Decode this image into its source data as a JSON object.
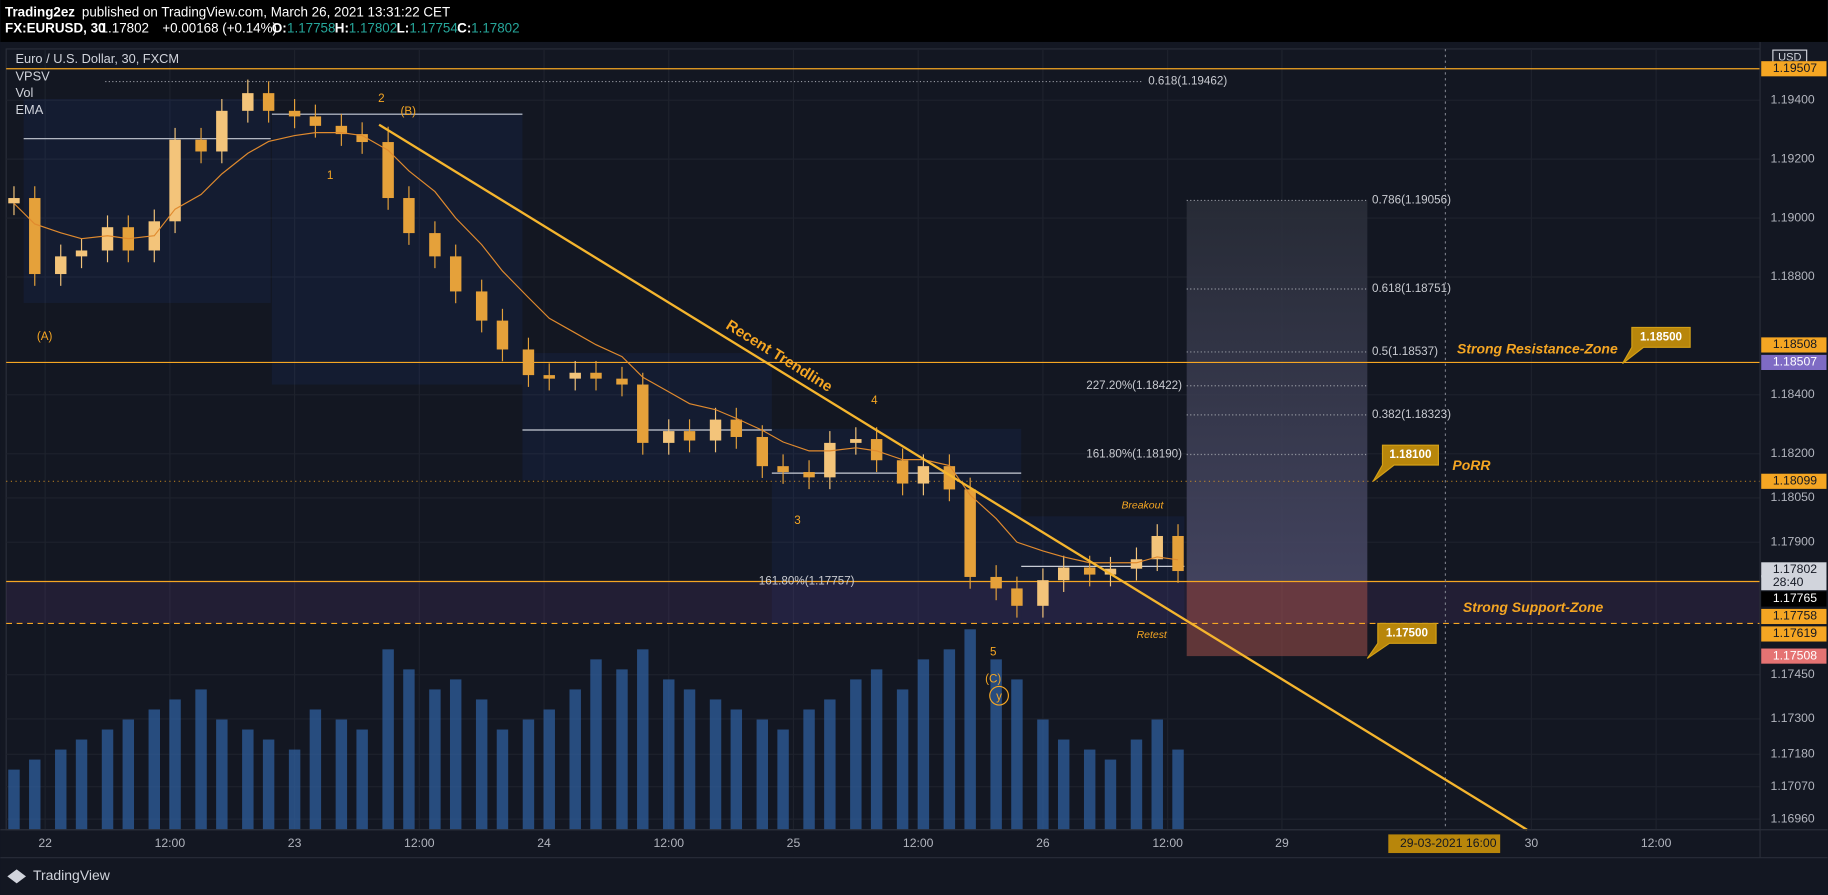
{
  "header": {
    "author": "Trading2ez",
    "published": "published on TradingView.com, March 26, 2021 13:31:22 CET",
    "symbol": "FX:EURUSD, 30",
    "last": "1.17802",
    "change": "+0.00168 (+0.14%)",
    "ohlc": [
      "O:",
      "1.17758",
      "H:",
      "1.17802",
      "L:",
      "1.17754",
      "C:",
      "1.17802"
    ]
  },
  "legend": {
    "title": "Euro / U.S. Dollar, 30, FXCM",
    "indicators": [
      "VPSV",
      "Vol",
      "EMA"
    ],
    "currency": "USD"
  },
  "chart_data": {
    "type": "candlestick",
    "up_color": "#f3c47a",
    "down_color": "#e5a13a",
    "ema_color": "#e08a2e",
    "volume_color": "#2f5f9e",
    "x": [
      -6,
      -2,
      3,
      7,
      12,
      16,
      21,
      25,
      30,
      34,
      39,
      43,
      48,
      52,
      57,
      61,
      66,
      70,
      75,
      79,
      84,
      88,
      93,
      97,
      102,
      106,
      111,
      115,
      120,
      124,
      129,
      133,
      138,
      142,
      147,
      151,
      156,
      160,
      165,
      169,
      174,
      178,
      183,
      187,
      192,
      196,
      201,
      205,
      210,
      214,
      218
    ],
    "open": [
      1.1905,
      1.19068,
      1.1881,
      1.1887,
      1.1889,
      1.18969,
      1.1889,
      1.18989,
      1.19266,
      1.19226,
      1.19364,
      1.19424,
      1.19364,
      1.19345,
      1.19313,
      1.19285,
      1.19258,
      1.19068,
      1.18949,
      1.1887,
      1.18751,
      1.18652,
      1.18554,
      1.18467,
      1.18455,
      1.18475,
      1.18455,
      1.18435,
      1.18237,
      1.18277,
      1.18245,
      1.18316,
      1.18257,
      1.18158,
      1.18138,
      1.1812,
      1.18237,
      1.1825,
      1.18178,
      1.18099,
      1.18158,
      1.18079,
      1.17782,
      1.17743,
      1.17684,
      1.17771,
      1.17814,
      1.1779,
      1.1781,
      1.17842,
      1.17921
    ],
    "high": [
      1.19108,
      1.19108,
      1.1891,
      1.1893,
      1.19009,
      1.19009,
      1.19029,
      1.19306,
      1.19306,
      1.19404,
      1.1947,
      1.19464,
      1.19404,
      1.19385,
      1.19353,
      1.19325,
      1.1931,
      1.19108,
      1.18989,
      1.1891,
      1.18791,
      1.18692,
      1.18594,
      1.18507,
      1.18515,
      1.18515,
      1.18495,
      1.18475,
      1.18317,
      1.18317,
      1.18356,
      1.18356,
      1.18297,
      1.18198,
      1.18178,
      1.18277,
      1.1829,
      1.1829,
      1.18218,
      1.18198,
      1.18198,
      1.18119,
      1.17822,
      1.17783,
      1.17811,
      1.17854,
      1.17854,
      1.1785,
      1.17882,
      1.17961,
      1.17961
    ],
    "low": [
      1.1901,
      1.1877,
      1.1877,
      1.1883,
      1.1885,
      1.1885,
      1.1885,
      1.18949,
      1.19186,
      1.19186,
      1.19324,
      1.19324,
      1.19305,
      1.19273,
      1.19245,
      1.19218,
      1.19028,
      1.18909,
      1.1883,
      1.18711,
      1.18612,
      1.18514,
      1.18427,
      1.18415,
      1.18415,
      1.18415,
      1.18395,
      1.18197,
      1.18197,
      1.18205,
      1.18205,
      1.18217,
      1.18118,
      1.18098,
      1.1808,
      1.1808,
      1.18197,
      1.18138,
      1.18059,
      1.18059,
      1.18039,
      1.17742,
      1.17703,
      1.17644,
      1.17644,
      1.17731,
      1.1775,
      1.1775,
      1.1777,
      1.17802,
      1.17762
    ],
    "close": [
      1.19068,
      1.1881,
      1.1887,
      1.1889,
      1.18969,
      1.1889,
      1.18989,
      1.19266,
      1.19226,
      1.19364,
      1.19424,
      1.19364,
      1.19345,
      1.19313,
      1.19285,
      1.19258,
      1.19068,
      1.18949,
      1.1887,
      1.18751,
      1.18652,
      1.18554,
      1.18467,
      1.18455,
      1.18475,
      1.18455,
      1.18435,
      1.18237,
      1.18277,
      1.18245,
      1.18316,
      1.18257,
      1.18158,
      1.18138,
      1.1812,
      1.18237,
      1.1825,
      1.18178,
      1.18099,
      1.18158,
      1.18079,
      1.17782,
      1.17743,
      1.17684,
      1.17771,
      1.17814,
      1.1779,
      1.1781,
      1.17842,
      1.17921,
      1.17802
    ],
    "ema": [
      1.1905,
      1.1898,
      1.1895,
      1.1893,
      1.1894,
      1.1893,
      1.1894,
      1.1903,
      1.1908,
      1.1915,
      1.1922,
      1.1926,
      1.1928,
      1.1929,
      1.1929,
      1.1928,
      1.1923,
      1.1916,
      1.1909,
      1.19,
      1.1891,
      1.1882,
      1.1873,
      1.1866,
      1.1861,
      1.1857,
      1.1853,
      1.1846,
      1.1841,
      1.1837,
      1.1835,
      1.1832,
      1.1828,
      1.1824,
      1.1821,
      1.1821,
      1.1822,
      1.1821,
      1.1818,
      1.1818,
      1.1816,
      1.1806,
      1.1798,
      1.179,
      1.1787,
      1.1785,
      1.1783,
      1.1783,
      1.1783,
      1.1785,
      1.1784
    ],
    "volume": [
      30,
      35,
      40,
      45,
      50,
      55,
      60,
      65,
      70,
      55,
      50,
      45,
      40,
      60,
      55,
      50,
      90,
      80,
      70,
      75,
      65,
      50,
      55,
      60,
      70,
      85,
      80,
      90,
      75,
      70,
      65,
      60,
      55,
      50,
      60,
      65,
      75,
      80,
      70,
      85,
      90,
      100,
      85,
      75,
      55,
      45,
      40,
      35,
      45,
      55,
      40
    ],
    "volume_lim": [
      0,
      100
    ],
    "xlim": [
      -7.5,
      330
    ],
    "ylim": [
      1.16924,
      1.19574
    ],
    "xticks": [
      {
        "value": 0,
        "label": "22"
      },
      {
        "value": 24,
        "label": "12:00"
      },
      {
        "value": 48,
        "label": "23"
      },
      {
        "value": 72,
        "label": "12:00"
      },
      {
        "value": 96,
        "label": "24"
      },
      {
        "value": 120,
        "label": "12:00"
      },
      {
        "value": 144,
        "label": "25"
      },
      {
        "value": 168,
        "label": "12:00"
      },
      {
        "value": 192,
        "label": "26"
      },
      {
        "value": 216,
        "label": "12:00"
      },
      {
        "value": 238,
        "label": "29"
      },
      {
        "value": 286,
        "label": "30"
      },
      {
        "value": 310,
        "label": "12:00"
      }
    ],
    "crosshair_x": {
      "value": 270,
      "label": "29-03-2021 16:00"
    },
    "yticks": [
      {
        "value": 1.194,
        "label": "1.19400"
      },
      {
        "value": 1.192,
        "label": "1.19200"
      },
      {
        "value": 1.19,
        "label": "1.19000"
      },
      {
        "value": 1.188,
        "label": "1.18800"
      },
      {
        "value": 1.184,
        "label": "1.18400"
      },
      {
        "value": 1.182,
        "label": "1.18200"
      },
      {
        "value": 1.1805,
        "label": "1.18050"
      },
      {
        "value": 1.179,
        "label": "1.17900"
      },
      {
        "value": 1.1745,
        "label": "1.17450"
      },
      {
        "value": 1.173,
        "label": "1.17300"
      },
      {
        "value": 1.1718,
        "label": "1.17180"
      },
      {
        "value": 1.1707,
        "label": "1.17070"
      },
      {
        "value": 1.1696,
        "label": "1.16960"
      }
    ],
    "grid": true
  },
  "price_labels": [
    {
      "label": "1.19507",
      "color": "#f5a623"
    },
    {
      "label": "1.18508",
      "color": "#f5a623"
    },
    {
      "label": "1.18507",
      "color": "#7e6bc4"
    },
    {
      "label": "1.18099",
      "color": "#f5a623"
    },
    {
      "label": "1.17802",
      "color": "#d1d4dc"
    },
    {
      "label": "28:40",
      "color": "#d1d4dc"
    },
    {
      "label": "1.17765",
      "color": "#000000"
    },
    {
      "label": "1.17758",
      "color": "#f5a623"
    },
    {
      "label": "1.17619",
      "color": "#f5a623"
    },
    {
      "label": "1.17508",
      "color": "#e57373"
    }
  ],
  "annotations": {
    "fib_levels": [
      "0.618(1.19462)",
      "0.786(1.19056)",
      "0.618(1.18751)",
      "0.5(1.18537)",
      "227.20%(1.18422)",
      "0.382(1.18323)",
      "161.80%(1.18190)",
      "161.80%(1.17757)"
    ],
    "waves": [
      "2",
      "(B)",
      "1",
      "(A)",
      "3",
      "4",
      "5",
      "(C)",
      "y"
    ],
    "trendline": "Recent Trendline",
    "resistance": "Strong Resistance-Zone",
    "support": "Strong Support-Zone",
    "porr": "PoRR",
    "breakout": "Breakout",
    "retest": "Retest",
    "callouts": [
      "1.18500",
      "1.18100",
      "1.17500"
    ]
  },
  "footer": "TradingView"
}
